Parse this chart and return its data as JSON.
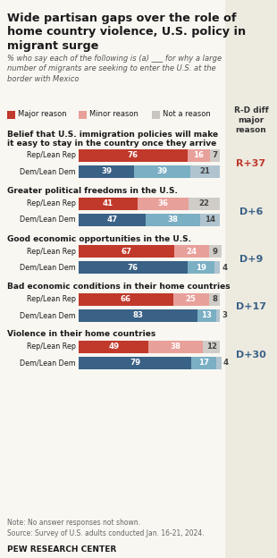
{
  "title": "Wide partisan gaps over the role of\nhome country violence, U.S. policy in\nmigrant surge",
  "subtitle": "% who say each of the following is (a) ___ for why a large\nnumber of migrants are seeking to enter the U.S. at the\nborder with Mexico",
  "legend": [
    "Major reason",
    "Minor reason",
    "Not a reason"
  ],
  "colors_rep": [
    "#c0392b",
    "#e8a09a",
    "#d0ccc8"
  ],
  "colors_dem": [
    "#3a6186",
    "#7aafc4",
    "#b0c4d0"
  ],
  "legend_colors": [
    "#c0392b",
    "#e8a09a",
    "#c8c4be"
  ],
  "groups": [
    {
      "label": "Belief that U.S. immigration policies will make\nit easy to stay in the country once they arrive",
      "rep": [
        76,
        16,
        7
      ],
      "dem": [
        39,
        39,
        21
      ],
      "diff": "R+37",
      "diff_color": "#c0392b"
    },
    {
      "label": "Greater political freedoms in the U.S.",
      "rep": [
        41,
        36,
        22
      ],
      "dem": [
        47,
        38,
        14
      ],
      "diff": "D+6",
      "diff_color": "#3a6186"
    },
    {
      "label": "Good economic opportunities in the U.S.",
      "rep": [
        67,
        24,
        9
      ],
      "dem": [
        76,
        19,
        4
      ],
      "diff": "D+9",
      "diff_color": "#3a6186"
    },
    {
      "label": "Bad economic conditions in their home countries",
      "rep": [
        66,
        25,
        8
      ],
      "dem": [
        83,
        13,
        3
      ],
      "diff": "D+17",
      "diff_color": "#3a6186"
    },
    {
      "label": "Violence in their home countries",
      "rep": [
        49,
        38,
        12
      ],
      "dem": [
        79,
        17,
        4
      ],
      "diff": "D+30",
      "diff_color": "#3a6186"
    }
  ],
  "row_labels": [
    "Rep/Lean Rep",
    "Dem/Lean Dem"
  ],
  "note": "Note: No answer responses not shown.\nSource: Survey of U.S. adults conducted Jan. 16-21, 2024.",
  "footer": "PEW RESEARCH CENTER",
  "bg_color": "#f9f7f2",
  "right_panel_bg": "#edeae0"
}
